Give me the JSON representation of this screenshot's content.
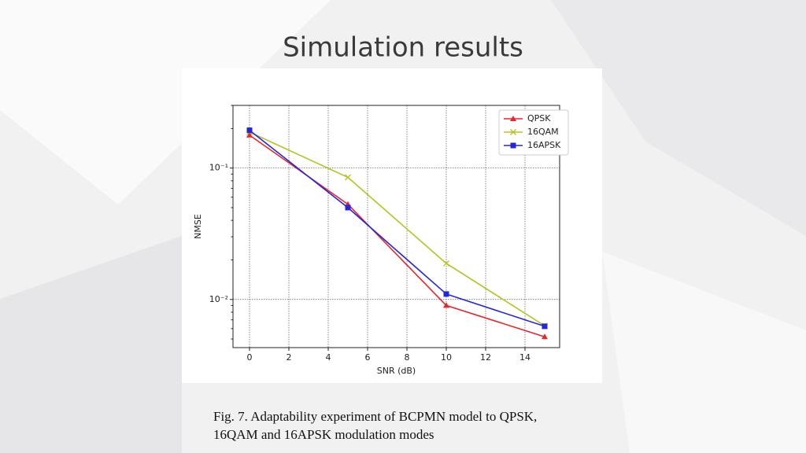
{
  "slide_title": "Simulation results",
  "caption_lines": [
    "Fig. 7. Adaptability experiment of BCPMN model to QPSK,",
    "16QAM and 16APSK modulation modes"
  ],
  "chart_data": {
    "type": "line",
    "x_label": "SNR (dB)",
    "y_label": "NMSE",
    "x": [
      0,
      5,
      10,
      15
    ],
    "series": [
      {
        "name": "QPSK",
        "color": "#e8262a",
        "marker": "triangle",
        "values": [
          0.178,
          0.053,
          0.009,
          0.0052
        ]
      },
      {
        "name": "16QAM",
        "color": "#b5c41d",
        "marker": "x",
        "values": [
          0.188,
          0.085,
          0.0188,
          0.0063
        ]
      },
      {
        "name": "16APSK",
        "color": "#2525e0",
        "marker": "square",
        "values": [
          0.194,
          0.05,
          0.011,
          0.00625
        ]
      }
    ],
    "xlim": [
      -0.84,
      15.76
    ],
    "xticks": [
      0,
      2,
      4,
      6,
      8,
      10,
      12,
      14
    ],
    "ylim": [
      0.0043,
      0.3
    ],
    "y_scale": "log",
    "yticks": [
      {
        "value": 0.1,
        "label": "10⁻¹"
      },
      {
        "value": 0.01,
        "label": "10⁻²"
      }
    ],
    "yminorticks": [
      0.005,
      0.006,
      0.007,
      0.008,
      0.009,
      0.02,
      0.03,
      0.04,
      0.05,
      0.06,
      0.07,
      0.08,
      0.09,
      0.2,
      0.3
    ],
    "grid": true,
    "legend": "upper right"
  }
}
